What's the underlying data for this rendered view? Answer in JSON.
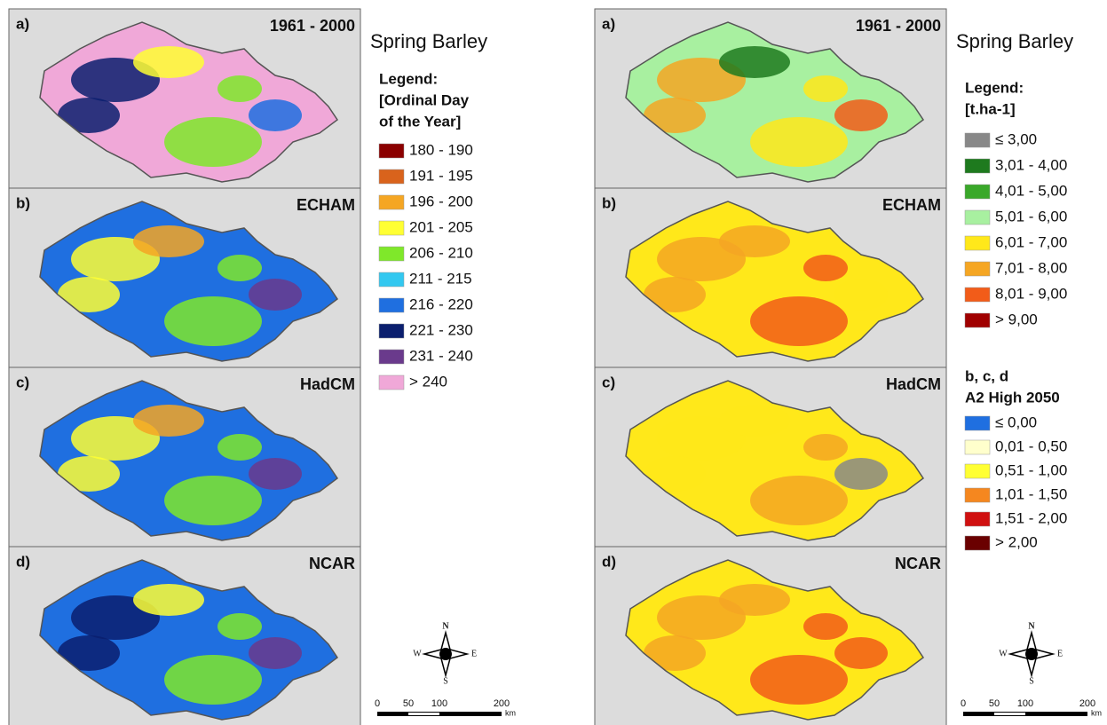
{
  "figures": [
    {
      "panels": [
        {
          "label": "a)",
          "title": "1961 - 2000"
        },
        {
          "label": "b)",
          "title": "ECHAM"
        },
        {
          "label": "c)",
          "title": "HadCM"
        },
        {
          "label": "d)",
          "title": "NCAR"
        }
      ],
      "title": "Spring Barley",
      "legend": {
        "title_lines": [
          "Legend:",
          "[Ordinal Day",
          "of the Year]"
        ],
        "items": [
          {
            "label": "180 - 190",
            "color": "#8b0000"
          },
          {
            "label": "191 - 195",
            "color": "#d9631c"
          },
          {
            "label": "196 - 200",
            "color": "#f5a623"
          },
          {
            "label": "201 - 205",
            "color": "#ffff33"
          },
          {
            "label": "206 - 210",
            "color": "#7fe82a"
          },
          {
            "label": "211 - 215",
            "color": "#33c8f0"
          },
          {
            "label": "216 - 220",
            "color": "#1f6fe0"
          },
          {
            "label": "221 - 230",
            "color": "#0b1f6e"
          },
          {
            "label": "231 - 240",
            "color": "#6a3a8c"
          },
          {
            "label": "> 240",
            "color": "#f0a8d8"
          }
        ]
      },
      "compass": {
        "n": "N",
        "e": "E",
        "s": "S",
        "w": "W"
      },
      "scale": {
        "ticks": [
          "0",
          "50",
          "100",
          "200"
        ],
        "unit": "km"
      }
    },
    {
      "panels": [
        {
          "label": "a)",
          "title": "1961 - 2000"
        },
        {
          "label": "b)",
          "title": "ECHAM"
        },
        {
          "label": "c)",
          "title": "HadCM"
        },
        {
          "label": "d)",
          "title": "NCAR"
        }
      ],
      "title": "Spring Barley",
      "legend": {
        "title_lines": [
          "Legend:",
          "[t.ha-1]"
        ],
        "items": [
          {
            "label": "≤ 3,00",
            "color": "#888888"
          },
          {
            "label": "3,01 - 4,00",
            "color": "#1e7a1e"
          },
          {
            "label": "4,01 - 5,00",
            "color": "#3aa82a"
          },
          {
            "label": "5,01 - 6,00",
            "color": "#a8f0a0"
          },
          {
            "label": "6,01 - 7,00",
            "color": "#ffe81a"
          },
          {
            "label": "7,01 - 8,00",
            "color": "#f5a623"
          },
          {
            "label": "8,01 - 9,00",
            "color": "#f25c19"
          },
          {
            "label": "> 9,00",
            "color": "#a00000"
          }
        ]
      },
      "legend2": {
        "title_lines": [
          "b, c, d",
          "A2 High 2050"
        ],
        "items": [
          {
            "label": "≤ 0,00",
            "color": "#1f6fe0"
          },
          {
            "label": "0,01 - 0,50",
            "color": "#ffffcc"
          },
          {
            "label": "0,51 - 1,00",
            "color": "#ffff33"
          },
          {
            "label": "1,01 - 1,50",
            "color": "#f5871f"
          },
          {
            "label": "1,51 - 2,00",
            "color": "#d01010"
          },
          {
            "label": "> 2,00",
            "color": "#6a0000"
          }
        ]
      },
      "compass": {
        "n": "N",
        "e": "E",
        "s": "S",
        "w": "W"
      },
      "scale": {
        "ticks": [
          "0",
          "50",
          "100",
          "200"
        ],
        "unit": "km"
      }
    }
  ]
}
